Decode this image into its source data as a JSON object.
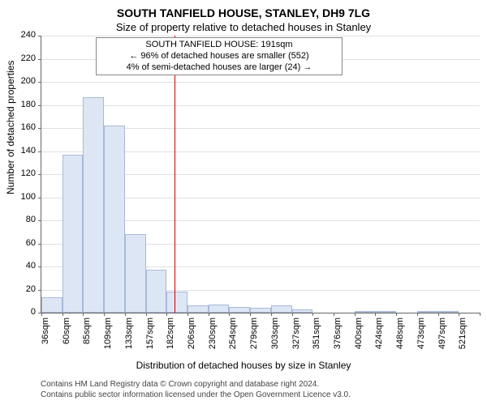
{
  "chart": {
    "type": "histogram",
    "title": "SOUTH TANFIELD HOUSE, STANLEY, DH9 7LG",
    "subtitle": "Size of property relative to detached houses in Stanley",
    "ylabel": "Number of detached properties",
    "xlabel": "Distribution of detached houses by size in Stanley",
    "callout": {
      "line1": "SOUTH TANFIELD HOUSE: 191sqm",
      "line2": "← 96% of detached houses are smaller (552)",
      "line3": "4% of semi-detached houses are larger (24) →"
    },
    "ylim": [
      0,
      240
    ],
    "ytick_step": 20,
    "yticks": [
      0,
      20,
      40,
      60,
      80,
      100,
      120,
      140,
      160,
      180,
      200,
      220,
      240
    ],
    "xticks": [
      "36sqm",
      "60sqm",
      "85sqm",
      "109sqm",
      "133sqm",
      "157sqm",
      "182sqm",
      "206sqm",
      "230sqm",
      "254sqm",
      "279sqm",
      "303sqm",
      "327sqm",
      "351sqm",
      "376sqm",
      "400sqm",
      "424sqm",
      "448sqm",
      "473sqm",
      "497sqm",
      "521sqm"
    ],
    "marker_x_value": 191,
    "marker_color": "#cc0000",
    "bar_fill": "#dde6f4",
    "bar_stroke": "#a8b8d8",
    "grid_color": "#e0e0e0",
    "background_color": "#ffffff",
    "title_fontsize": 14,
    "subtitle_fontsize": 13,
    "label_fontsize": 12,
    "tick_fontsize": 11,
    "values": [
      13,
      137,
      187,
      162,
      68,
      37,
      18,
      6,
      7,
      5,
      4,
      6,
      3,
      0,
      0,
      1,
      1,
      0,
      1,
      1,
      0
    ]
  },
  "footnotes": {
    "line1": "Contains HM Land Registry data © Crown copyright and database right 2024.",
    "line2": "Contains public sector information licensed under the Open Government Licence v3.0."
  }
}
